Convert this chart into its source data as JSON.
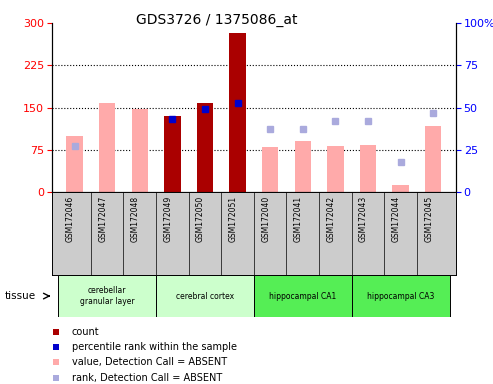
{
  "title": "GDS3726 / 1375086_at",
  "samples": [
    "GSM172046",
    "GSM172047",
    "GSM172048",
    "GSM172049",
    "GSM172050",
    "GSM172051",
    "GSM172040",
    "GSM172041",
    "GSM172042",
    "GSM172043",
    "GSM172044",
    "GSM172045"
  ],
  "count_values": [
    null,
    null,
    null,
    135,
    158,
    282,
    null,
    null,
    null,
    null,
    null,
    null
  ],
  "rank_values": [
    null,
    null,
    null,
    130,
    148,
    158,
    null,
    null,
    null,
    null,
    null,
    null
  ],
  "absent_value": [
    100,
    158,
    147,
    null,
    null,
    null,
    80,
    90,
    82,
    84,
    13,
    118
  ],
  "absent_rank": [
    27,
    null,
    null,
    null,
    null,
    null,
    37,
    37,
    42,
    42,
    18,
    47
  ],
  "left_ylim": [
    0,
    300
  ],
  "right_ylim": [
    0,
    100
  ],
  "left_yticks": [
    0,
    75,
    150,
    225,
    300
  ],
  "right_yticks": [
    0,
    25,
    50,
    75,
    100
  ],
  "right_yticklabels": [
    "0",
    "25",
    "50",
    "75",
    "100%"
  ],
  "tissue_groups": [
    {
      "label": "cerebellar\ngranular layer",
      "start": 0,
      "end": 3,
      "color": "#ccffcc"
    },
    {
      "label": "cerebral cortex",
      "start": 3,
      "end": 6,
      "color": "#ccffcc"
    },
    {
      "label": "hippocampal CA1",
      "start": 6,
      "end": 9,
      "color": "#55ee55"
    },
    {
      "label": "hippocampal CA3",
      "start": 9,
      "end": 12,
      "color": "#55ee55"
    }
  ],
  "count_color": "#aa0000",
  "rank_color": "#0000cc",
  "absent_value_color": "#ffaaaa",
  "absent_rank_color": "#aaaadd",
  "legend_items": [
    {
      "label": "count",
      "color": "#aa0000"
    },
    {
      "label": "percentile rank within the sample",
      "color": "#0000cc"
    },
    {
      "label": "value, Detection Call = ABSENT",
      "color": "#ffaaaa"
    },
    {
      "label": "rank, Detection Call = ABSENT",
      "color": "#aaaadd"
    }
  ],
  "bar_width": 0.5,
  "absent_bar_width": 0.5
}
